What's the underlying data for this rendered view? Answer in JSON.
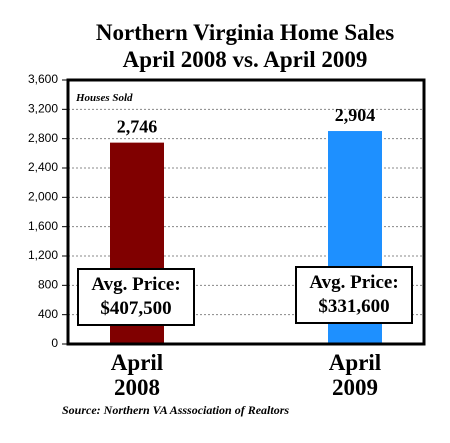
{
  "chart_data": {
    "type": "bar",
    "title": "Northern Virginia Home Sales",
    "subtitle": "April 2008 vs. April 2009",
    "y_label": "Houses Sold",
    "source": "Source: Northern VA Asssociation of Realtors",
    "categories": [
      "April\n2008",
      "April\n2009"
    ],
    "series": [
      {
        "name": "Houses Sold",
        "colors": [
          "#800000",
          "#1e90ff"
        ],
        "values": [
          2746,
          2904
        ],
        "value_labels": [
          "2,746",
          "2,904"
        ]
      }
    ],
    "annotations": [
      "Avg. Price:\n$407,500",
      "Avg. Price:\n$331,600"
    ],
    "ylim": [
      0,
      3600
    ],
    "yticks": [
      0,
      400,
      800,
      {
        "value": 1200,
        "label": "1,200"
      },
      {
        "value": 1600,
        "label": "1,600"
      },
      {
        "value": 2000,
        "label": "2,000"
      },
      {
        "value": 2400,
        "label": "2,400"
      },
      {
        "value": 2800,
        "label": "2,800"
      },
      {
        "value": 3200,
        "label": "3,200"
      },
      {
        "value": 3600,
        "label": "3,600"
      }
    ],
    "grid": true
  }
}
